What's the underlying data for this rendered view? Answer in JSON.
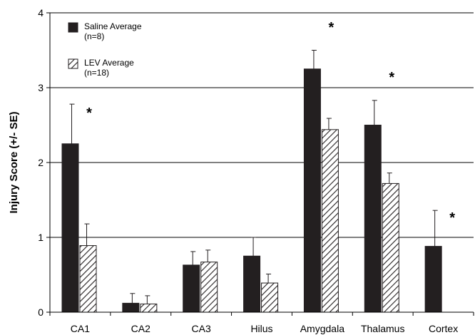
{
  "chart_data": {
    "type": "bar",
    "ylabel": "Injury Score (+/- SE)",
    "xlabel": "",
    "title": "",
    "ylim": [
      0,
      4
    ],
    "yticks": [
      "0",
      "1",
      "2",
      "3",
      "4"
    ],
    "grid": "horizontal",
    "legend_placement": "top-left",
    "categories": [
      "CA1",
      "CA2",
      "CA3",
      "Hilus",
      "Amygdala",
      "Thalamus",
      "Cortex"
    ],
    "series": [
      {
        "name": "Saline Average",
        "n_label": "(n=8)",
        "fill": "solid",
        "color": "#231f20",
        "values": [
          2.25,
          0.12,
          0.63,
          0.75,
          3.25,
          2.5,
          0.88
        ],
        "se": [
          0.53,
          0.13,
          0.18,
          0.25,
          0.25,
          0.33,
          0.48
        ]
      },
      {
        "name": "LEV Average",
        "n_label": "(n=18)",
        "fill": "hatched",
        "color": "#231f20",
        "values": [
          0.89,
          0.11,
          0.67,
          0.39,
          2.44,
          1.72,
          0.0
        ],
        "se": [
          0.29,
          0.11,
          0.16,
          0.12,
          0.15,
          0.14,
          0.0
        ]
      }
    ],
    "significance_markers": [
      {
        "category": "CA1",
        "text": "*"
      },
      {
        "category": "Amygdala",
        "text": "*"
      },
      {
        "category": "Thalamus",
        "text": "*"
      },
      {
        "category": "Cortex",
        "text": "*"
      }
    ]
  }
}
